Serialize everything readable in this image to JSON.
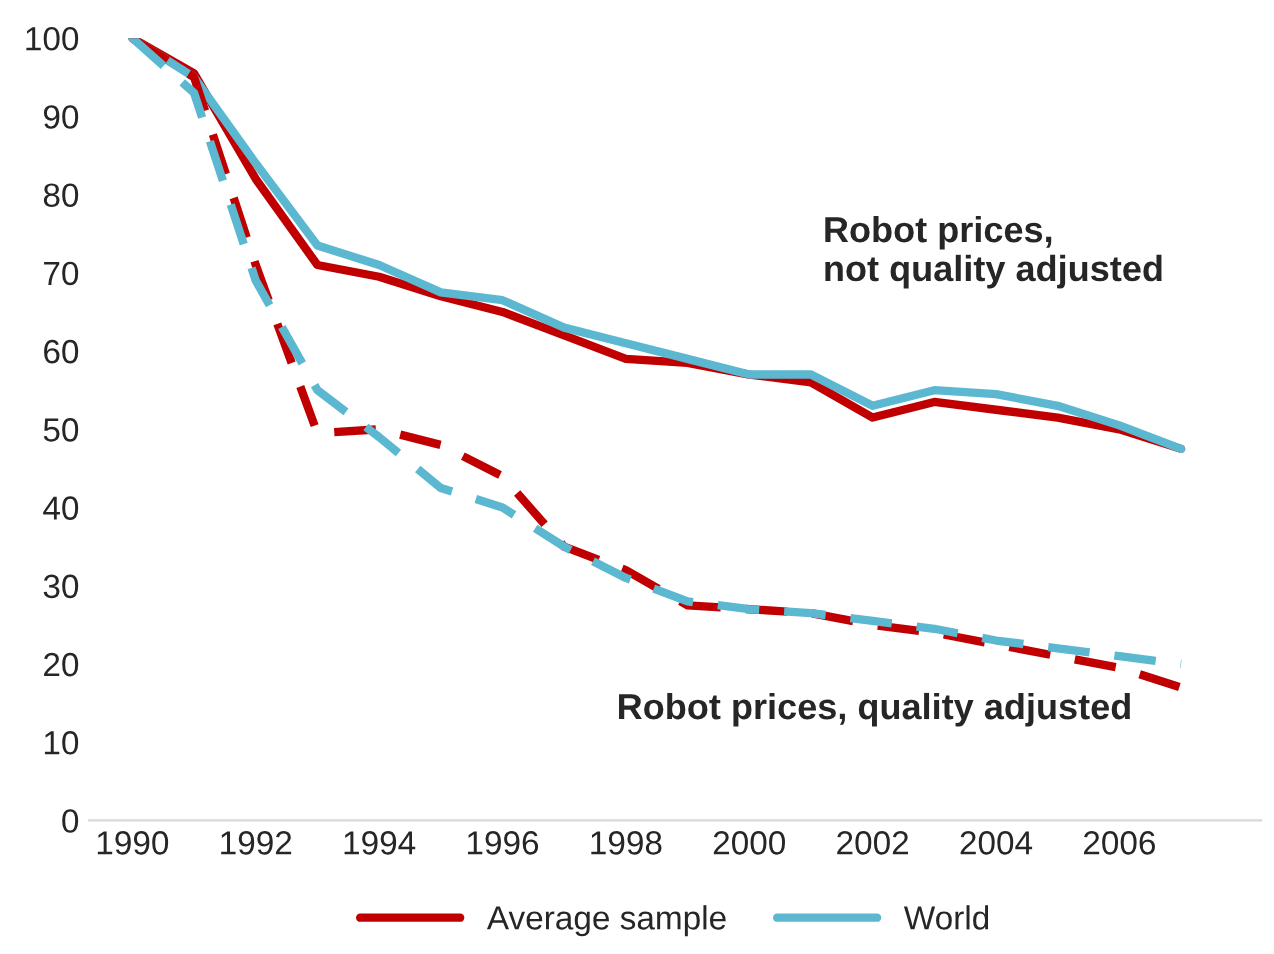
{
  "chart_data": {
    "type": "line",
    "x": [
      1990,
      1991,
      1992,
      1993,
      1994,
      1995,
      1996,
      1997,
      1998,
      1999,
      2000,
      2001,
      2002,
      2003,
      2004,
      2005,
      2006,
      2007
    ],
    "series": [
      {
        "name": "Average sample",
        "color": "#c00000",
        "line_style": "solid",
        "values": [
          100,
          95.5,
          82,
          71,
          69.5,
          67,
          65,
          62,
          59,
          58.5,
          57,
          56,
          51.5,
          53.5,
          52.5,
          51.5,
          50,
          47.5
        ]
      },
      {
        "name": "World",
        "color": "#5bb8d0",
        "line_style": "solid",
        "values": [
          100,
          95,
          84,
          73.5,
          71,
          67.5,
          66.5,
          63,
          61,
          59,
          57,
          57,
          53,
          55,
          54.5,
          53,
          50.5,
          47.5
        ]
      },
      {
        "color": "#c00000",
        "line_style": "dashed",
        "values": [
          100,
          95,
          71,
          49.5,
          50,
          48,
          44,
          35,
          32,
          27.5,
          27,
          26.5,
          25,
          24,
          22.5,
          21,
          19.5,
          17
        ]
      },
      {
        "color": "#5bb8d0",
        "line_style": "dashed",
        "values": [
          100,
          93,
          69,
          55,
          49,
          42.5,
          40,
          35,
          31,
          28,
          27,
          26.5,
          25.5,
          24.5,
          23,
          22,
          21,
          20
        ]
      }
    ],
    "annotations": [
      "Robot prices,\nnot quality adjusted",
      "Robot prices, quality adjusted"
    ],
    "xlim": [
      1989.3,
      2008.3
    ],
    "xticks": [
      1990,
      1992,
      1994,
      1996,
      1998,
      2000,
      2002,
      2004,
      2006
    ],
    "ylim": [
      0,
      100
    ],
    "yticks": [
      0,
      10,
      20,
      30,
      40,
      50,
      60,
      70,
      80,
      90,
      100
    ],
    "grid": false,
    "legend": "bottom",
    "marker": "none"
  }
}
